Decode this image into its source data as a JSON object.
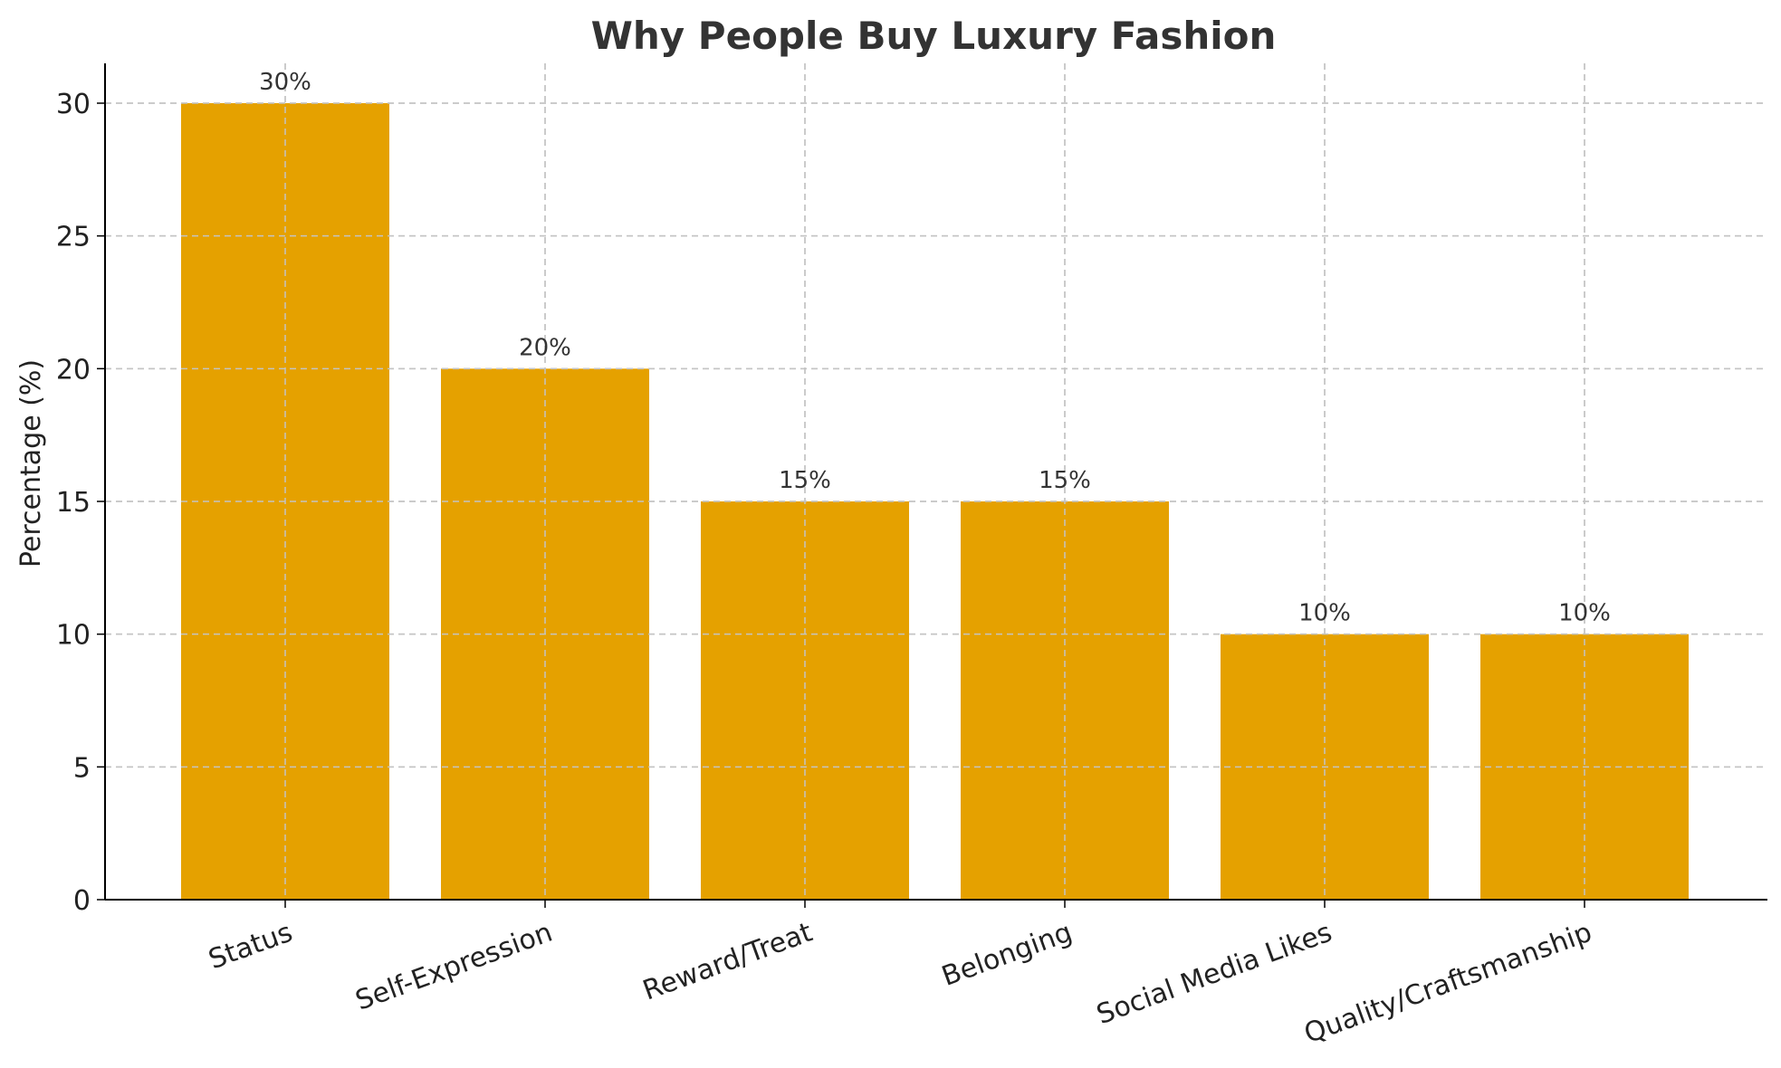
{
  "chart_data": {
    "type": "bar",
    "title": "Why People Buy Luxury Fashion",
    "xlabel": "",
    "ylabel": "Percentage (%)",
    "categories": [
      "Status",
      "Self-Expression",
      "Reward/Treat",
      "Belonging",
      "Social Media Likes",
      "Quality/Craftsmanship"
    ],
    "values": [
      30,
      20,
      15,
      15,
      10,
      10
    ],
    "data_labels": [
      "30%",
      "20%",
      "15%",
      "15%",
      "10%",
      "10%"
    ],
    "ylim": [
      0,
      31.5
    ],
    "yticks": [
      0,
      5,
      10,
      15,
      20,
      25,
      30
    ],
    "grid": true,
    "bar_color": "#E5A100",
    "x_tick_rotation_deg": -20
  }
}
